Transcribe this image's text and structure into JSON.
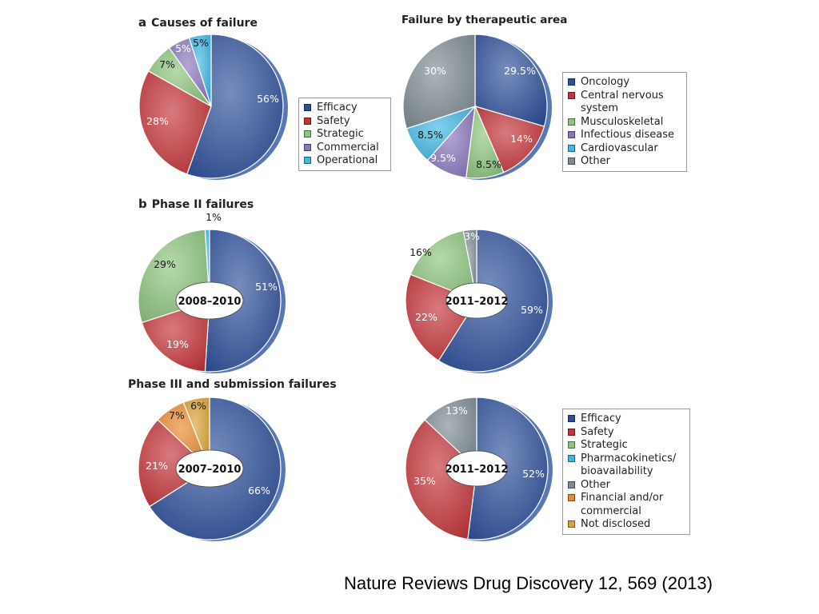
{
  "colors": {
    "Efficacy": "#2d4f9a",
    "Safety": "#c33238",
    "Strategic": "#8dc47d",
    "Commercial": "#8a76bd",
    "Operational": "#3fb6e3",
    "Oncology": "#2d4f9a",
    "Central nervous system": "#c33238",
    "Musculoskeletal": "#8dc47d",
    "Infectious disease": "#8a76bd",
    "Cardiovascular": "#3fb6e3",
    "Other": "#7e8b94",
    "Pharmacokinetics/ bioavailability": "#3fb6e3",
    "Financial and/or commercial": "#e8892e",
    "Not disclosed": "#d9a236"
  },
  "sections": {
    "a_letter": "a",
    "a_label": "Causes of failure",
    "b_letter": "b",
    "b_label": "Phase II failures",
    "phase3_label": "Phase III and submission failures"
  },
  "titles": {
    "therapeutic": "Failure by therapeutic area"
  },
  "legends": {
    "causes": [
      "Efficacy",
      "Safety",
      "Strategic",
      "Commercial",
      "Operational"
    ],
    "therapeutic": [
      "Oncology",
      "Central nervous system",
      "Musculoskeletal",
      "Infectious disease",
      "Cardiovascular",
      "Other"
    ],
    "phases": [
      "Efficacy",
      "Safety",
      "Strategic",
      "Pharmacokinetics/ bioavailability",
      "Other",
      "Financial and/or commercial",
      "Not disclosed"
    ]
  },
  "citation": "Nature Reviews Drug Discovery 12, 569 (2013)",
  "chart_data": [
    {
      "id": "causes",
      "type": "pie",
      "title": "Causes of failure",
      "categories": [
        "Efficacy",
        "Safety",
        "Strategic",
        "Commercial",
        "Operational"
      ],
      "values": [
        56,
        28,
        7,
        5,
        5
      ],
      "labels": [
        "56%",
        "28%",
        "7%",
        "5%",
        "5%"
      ],
      "legend": "right"
    },
    {
      "id": "therapeutic",
      "type": "pie",
      "title": "Failure by therapeutic area",
      "categories": [
        "Oncology",
        "Central nervous system",
        "Musculoskeletal",
        "Infectious disease",
        "Cardiovascular",
        "Other"
      ],
      "values": [
        29.5,
        14,
        8.5,
        9.5,
        8.5,
        30
      ],
      "labels": [
        "29.5%",
        "14%",
        "8.5%",
        "9.5%",
        "8.5%",
        "30%"
      ],
      "legend": "right"
    },
    {
      "id": "p2a",
      "type": "pie",
      "title": "Phase II failures",
      "center_label": "2008–2010",
      "categories": [
        "Efficacy",
        "Safety",
        "Strategic",
        "Pharmacokinetics/ bioavailability"
      ],
      "values": [
        51,
        19,
        29,
        1
      ],
      "labels": [
        "51%",
        "19%",
        "29%",
        "1%"
      ]
    },
    {
      "id": "p2b",
      "type": "pie",
      "title": "Phase II failures",
      "center_label": "2011–2012",
      "categories": [
        "Efficacy",
        "Safety",
        "Strategic",
        "Other"
      ],
      "values": [
        59,
        22,
        16,
        3
      ],
      "labels": [
        "59%",
        "22%",
        "16%",
        "3%"
      ]
    },
    {
      "id": "p3a",
      "type": "pie",
      "title": "Phase III and submission failures",
      "center_label": "2007–2010",
      "categories": [
        "Efficacy",
        "Safety",
        "Financial and/or commercial",
        "Not disclosed"
      ],
      "values": [
        66,
        21,
        7,
        6
      ],
      "labels": [
        "66%",
        "21%",
        "7%",
        "6%"
      ]
    },
    {
      "id": "p3b",
      "type": "pie",
      "title": "Phase III and submission failures",
      "center_label": "2011–2012",
      "categories": [
        "Efficacy",
        "Safety",
        "Other"
      ],
      "values": [
        52,
        35,
        13
      ],
      "labels": [
        "52%",
        "35%",
        "13%"
      ],
      "legend": "right"
    }
  ]
}
